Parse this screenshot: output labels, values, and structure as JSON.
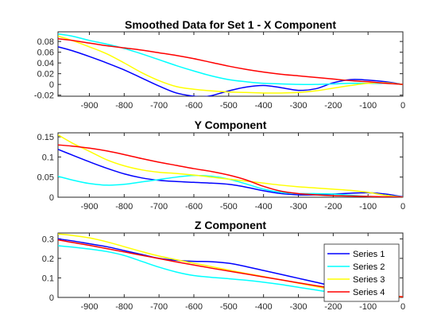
{
  "chart_data": [
    {
      "type": "line",
      "title": "Smoothed Data for Set 1 - X Component",
      "xlim": [
        -990,
        0
      ],
      "ylim": [
        -0.022,
        0.098
      ],
      "xticks": [
        -900,
        -800,
        -700,
        -600,
        -500,
        -400,
        -300,
        -200,
        -100,
        0
      ],
      "xtick_labels": [
        "-900",
        "-800",
        "-700",
        "-600",
        "-500",
        "-400",
        "-300",
        "-200",
        "-100",
        "0"
      ],
      "yticks": [
        -0.02,
        0,
        0.02,
        0.04,
        0.06,
        0.08
      ],
      "ytick_labels": [
        "-0.02",
        "0",
        "0.02",
        "0.04",
        "0.06",
        "0.08"
      ],
      "grid": false,
      "series": [
        {
          "name": "Series 1",
          "color": "#0000ff",
          "x": [
            -990,
            -950,
            -900,
            -850,
            -800,
            -750,
            -700,
            -650,
            -600,
            -575,
            -550,
            -500,
            -450,
            -400,
            -350,
            -300,
            -250,
            -200,
            -150,
            -100,
            -50,
            0
          ],
          "y": [
            0.07,
            0.063,
            0.052,
            0.04,
            0.027,
            0.012,
            -0.003,
            -0.016,
            -0.022,
            -0.023,
            -0.021,
            -0.012,
            -0.005,
            -0.002,
            -0.006,
            -0.011,
            -0.008,
            0.003,
            0.009,
            0.008,
            0.005,
            0.0
          ]
        },
        {
          "name": "Series 2",
          "color": "#00ffff",
          "x": [
            -990,
            -950,
            -900,
            -850,
            -800,
            -750,
            -700,
            -650,
            -600,
            -550,
            -500,
            -450,
            -400,
            -350,
            -300,
            -250,
            -200,
            -150,
            -100,
            -50,
            0
          ],
          "y": [
            0.094,
            0.09,
            0.082,
            0.075,
            0.067,
            0.057,
            0.046,
            0.035,
            0.025,
            0.016,
            0.009,
            0.005,
            0.002,
            0.001,
            0.0,
            0.0,
            0.001,
            0.002,
            0.002,
            0.002,
            0.0
          ]
        },
        {
          "name": "Series 3",
          "color": "#ffff00",
          "x": [
            -990,
            -950,
            -900,
            -850,
            -800,
            -750,
            -700,
            -650,
            -600,
            -550,
            -500,
            -450,
            -400,
            -350,
            -300,
            -250,
            -200,
            -150,
            -100,
            -50,
            0
          ],
          "y": [
            0.09,
            0.082,
            0.07,
            0.057,
            0.04,
            0.022,
            0.007,
            -0.004,
            -0.009,
            -0.012,
            -0.014,
            -0.015,
            -0.016,
            -0.016,
            -0.015,
            -0.012,
            -0.007,
            -0.002,
            0.002,
            0.003,
            0.0
          ]
        },
        {
          "name": "Series 4",
          "color": "#ff0000",
          "x": [
            -990,
            -950,
            -900,
            -850,
            -800,
            -750,
            -700,
            -650,
            -600,
            -550,
            -500,
            -450,
            -400,
            -350,
            -300,
            -250,
            -200,
            -150,
            -100,
            -50,
            0
          ],
          "y": [
            0.085,
            0.082,
            0.077,
            0.072,
            0.068,
            0.064,
            0.059,
            0.054,
            0.048,
            0.041,
            0.034,
            0.028,
            0.023,
            0.019,
            0.016,
            0.013,
            0.01,
            0.007,
            0.005,
            0.002,
            0.0
          ]
        }
      ]
    },
    {
      "type": "line",
      "title": "Y Component",
      "xlim": [
        -990,
        0
      ],
      "ylim": [
        0,
        0.16
      ],
      "xticks": [
        -900,
        -800,
        -700,
        -600,
        -500,
        -400,
        -300,
        -200,
        -100,
        0
      ],
      "xtick_labels": [
        "-900",
        "-800",
        "-700",
        "-600",
        "-500",
        "-400",
        "-300",
        "-200",
        "-100",
        "0"
      ],
      "yticks": [
        0,
        0.05,
        0.1,
        0.15
      ],
      "ytick_labels": [
        "0",
        "0.05",
        "0.1",
        "0.15"
      ],
      "grid": false,
      "series": [
        {
          "name": "Series 1",
          "color": "#0000ff",
          "x": [
            -990,
            -950,
            -900,
            -850,
            -800,
            -750,
            -700,
            -650,
            -600,
            -550,
            -500,
            -450,
            -400,
            -350,
            -300,
            -250,
            -200,
            -150,
            -100,
            -50,
            0
          ],
          "y": [
            0.119,
            0.105,
            0.088,
            0.072,
            0.058,
            0.048,
            0.042,
            0.039,
            0.037,
            0.035,
            0.032,
            0.025,
            0.016,
            0.009,
            0.006,
            0.006,
            0.008,
            0.01,
            0.011,
            0.008,
            0.001
          ]
        },
        {
          "name": "Series 2",
          "color": "#00ffff",
          "x": [
            -990,
            -950,
            -900,
            -850,
            -800,
            -750,
            -700,
            -650,
            -600,
            -550,
            -500,
            -450,
            -400,
            -350,
            -300,
            -250,
            -200,
            -150,
            -100,
            -50,
            0
          ],
          "y": [
            0.052,
            0.043,
            0.034,
            0.03,
            0.032,
            0.038,
            0.044,
            0.05,
            0.054,
            0.052,
            0.045,
            0.033,
            0.02,
            0.012,
            0.009,
            0.009,
            0.008,
            0.005,
            0.002,
            0.001,
            0.0
          ]
        },
        {
          "name": "Series 3",
          "color": "#ffff00",
          "x": [
            -990,
            -950,
            -900,
            -850,
            -800,
            -750,
            -700,
            -650,
            -600,
            -550,
            -500,
            -450,
            -400,
            -350,
            -300,
            -250,
            -200,
            -150,
            -100,
            -50,
            0
          ],
          "y": [
            0.155,
            0.135,
            0.114,
            0.093,
            0.078,
            0.068,
            0.062,
            0.059,
            0.055,
            0.05,
            0.045,
            0.04,
            0.035,
            0.03,
            0.026,
            0.023,
            0.02,
            0.017,
            0.012,
            0.005,
            0.0
          ]
        },
        {
          "name": "Series 4",
          "color": "#ff0000",
          "x": [
            -990,
            -950,
            -900,
            -850,
            -800,
            -750,
            -700,
            -650,
            -600,
            -550,
            -500,
            -450,
            -400,
            -350,
            -300,
            -250,
            -200,
            -150,
            -100,
            -50,
            0
          ],
          "y": [
            0.13,
            0.127,
            0.122,
            0.115,
            0.106,
            0.096,
            0.087,
            0.079,
            0.071,
            0.064,
            0.055,
            0.043,
            0.027,
            0.015,
            0.009,
            0.006,
            0.004,
            0.003,
            0.002,
            0.001,
            0.0
          ]
        }
      ]
    },
    {
      "type": "line",
      "title": "Z Component",
      "xlim": [
        -990,
        0
      ],
      "ylim": [
        0,
        0.33
      ],
      "xticks": [
        -900,
        -800,
        -700,
        -600,
        -500,
        -400,
        -300,
        -200,
        -100,
        0
      ],
      "xtick_labels": [
        "-900",
        "-800",
        "-700",
        "-600",
        "-500",
        "-400",
        "-300",
        "-200",
        "-100",
        "0"
      ],
      "yticks": [
        0,
        0.1,
        0.2,
        0.3
      ],
      "ytick_labels": [
        "0",
        "0.1",
        "0.2",
        "0.3"
      ],
      "grid": false,
      "legend": {
        "position": "bottom-right",
        "entries": [
          "Series 1",
          "Series 2",
          "Series 3",
          "Series 4"
        ]
      },
      "series": [
        {
          "name": "Series 1",
          "color": "#0000ff",
          "x": [
            -990,
            -950,
            -900,
            -850,
            -800,
            -750,
            -700,
            -650,
            -600,
            -550,
            -500,
            -450,
            -400,
            -350,
            -300,
            -250,
            -200,
            -150,
            -100,
            -50,
            0
          ],
          "y": [
            0.3,
            0.29,
            0.275,
            0.26,
            0.24,
            0.22,
            0.2,
            0.19,
            0.185,
            0.183,
            0.175,
            0.158,
            0.138,
            0.118,
            0.098,
            0.078,
            0.058,
            0.042,
            0.028,
            0.013,
            0.0
          ]
        },
        {
          "name": "Series 2",
          "color": "#00ffff",
          "x": [
            -990,
            -950,
            -900,
            -850,
            -800,
            -750,
            -700,
            -650,
            -600,
            -550,
            -500,
            -450,
            -400,
            -350,
            -300,
            -250,
            -200,
            -150,
            -100,
            -50,
            0
          ],
          "y": [
            0.265,
            0.258,
            0.248,
            0.235,
            0.215,
            0.185,
            0.155,
            0.13,
            0.112,
            0.103,
            0.096,
            0.088,
            0.078,
            0.066,
            0.052,
            0.038,
            0.025,
            0.015,
            0.007,
            0.002,
            0.0
          ]
        },
        {
          "name": "Series 3",
          "color": "#ffff00",
          "x": [
            -990,
            -950,
            -900,
            -850,
            -800,
            -750,
            -700,
            -650,
            -600,
            -550,
            -500,
            -450,
            -400,
            -350,
            -300,
            -250,
            -200,
            -150,
            -100,
            -50,
            0
          ],
          "y": [
            0.325,
            0.318,
            0.305,
            0.285,
            0.26,
            0.235,
            0.212,
            0.193,
            0.175,
            0.158,
            0.14,
            0.123,
            0.107,
            0.09,
            0.073,
            0.056,
            0.04,
            0.027,
            0.016,
            0.007,
            0.0
          ]
        },
        {
          "name": "Series 4",
          "color": "#ff0000",
          "x": [
            -990,
            -950,
            -900,
            -850,
            -800,
            -750,
            -700,
            -650,
            -600,
            -550,
            -500,
            -450,
            -400,
            -350,
            -300,
            -250,
            -200,
            -150,
            -100,
            -50,
            0
          ],
          "y": [
            0.295,
            0.282,
            0.267,
            0.25,
            0.233,
            0.216,
            0.199,
            0.182,
            0.166,
            0.15,
            0.135,
            0.12,
            0.105,
            0.09,
            0.075,
            0.06,
            0.046,
            0.033,
            0.022,
            0.012,
            0.003
          ]
        }
      ]
    }
  ]
}
